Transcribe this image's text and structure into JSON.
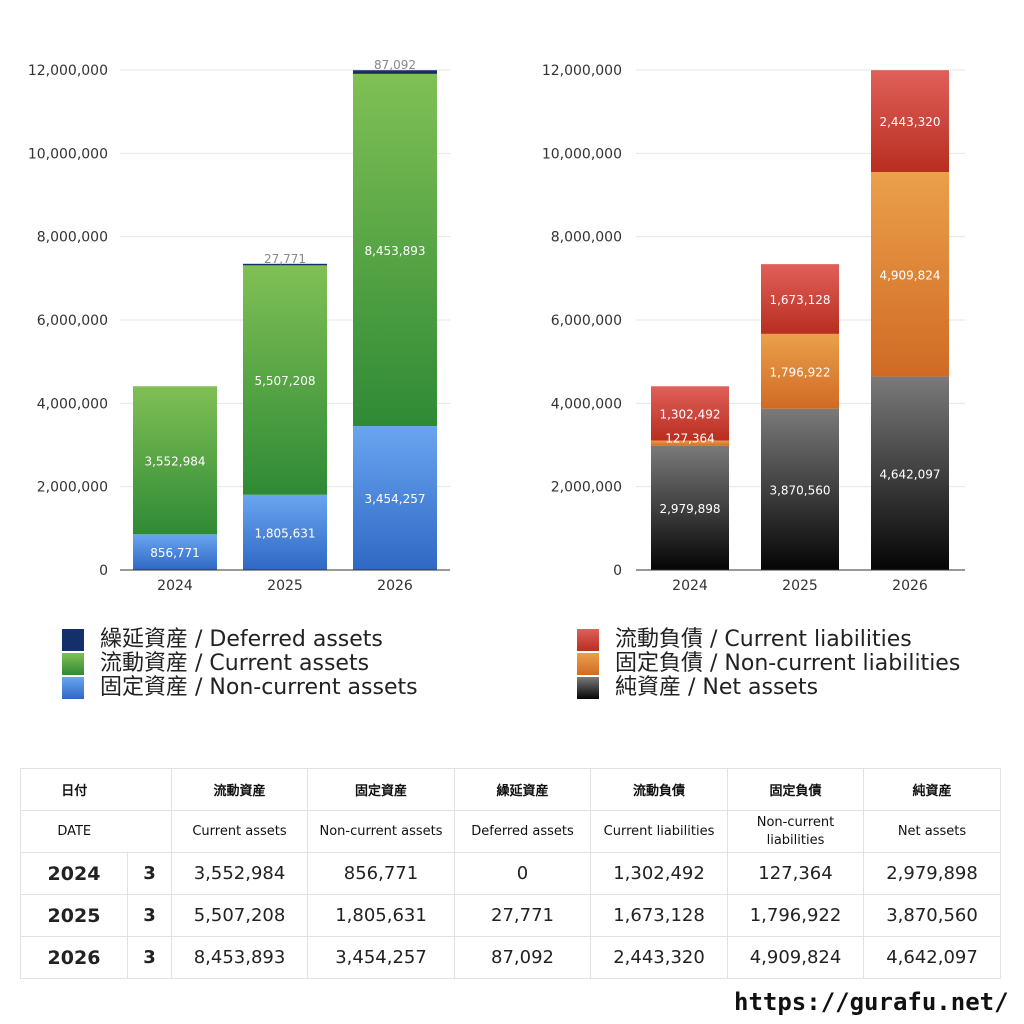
{
  "chart_data": [
    {
      "type": "bar",
      "stacked": true,
      "categories": [
        "2024",
        "2025",
        "2026"
      ],
      "series": [
        {
          "name": "固定資産 / Non-current assets",
          "values": [
            856771,
            1805631,
            3454257
          ],
          "color": "#4a86d8",
          "colorTop": "#6aa5f0",
          "colorBottom": "#2f68c4",
          "labelColor": "#ffffff"
        },
        {
          "name": "流動資産 / Current assets",
          "values": [
            3552984,
            5507208,
            8453893
          ],
          "color": "#5aa64a",
          "colorTop": "#80c055",
          "colorBottom": "#2f8a35",
          "labelColor": "#ffffff"
        },
        {
          "name": "繰延資産 / Deferred assets",
          "values": [
            0,
            27771,
            87092
          ],
          "color": "#14306a",
          "colorTop": "#1a3a7a",
          "colorBottom": "#0e2456",
          "labelColor": "#888888"
        }
      ],
      "ylim": [
        0,
        12000000
      ],
      "yticks": [
        0,
        2000000,
        4000000,
        6000000,
        8000000,
        10000000,
        12000000
      ],
      "grid": true
    },
    {
      "type": "bar",
      "stacked": true,
      "categories": [
        "2024",
        "2025",
        "2026"
      ],
      "series": [
        {
          "name": "純資産 / Net assets",
          "values": [
            2979898,
            3870560,
            4642097
          ],
          "color": "#3a3a3a",
          "colorTop": "#7a7a7a",
          "colorBottom": "#050505",
          "labelColor": "#ffffff"
        },
        {
          "name": "固定負債 / Non-current liabilities",
          "values": [
            127364,
            1796922,
            4909824
          ],
          "color": "#e08a35",
          "colorTop": "#eba04a",
          "colorBottom": "#d06a25",
          "labelColor": "#ffffff"
        },
        {
          "name": "流動負債 / Current liabilities",
          "values": [
            1302492,
            1673128,
            2443320
          ],
          "color": "#d0453a",
          "colorTop": "#e0605a",
          "colorBottom": "#b82e20",
          "labelColor": "#ffffff"
        }
      ],
      "ylim": [
        0,
        12000000
      ],
      "yticks": [
        0,
        2000000,
        4000000,
        6000000,
        8000000,
        10000000,
        12000000
      ],
      "grid": true
    }
  ],
  "legend_left": [
    {
      "label": "繰延資産 / Deferred assets",
      "color": "#14306a"
    },
    {
      "label": "流動資産 / Current assets",
      "color": "#5aa64a"
    },
    {
      "label": "固定資産 / Non-current assets",
      "color": "#4a86d8"
    }
  ],
  "legend_right": [
    {
      "label": "流動負債 / Current liabilities",
      "color": "#d0453a"
    },
    {
      "label": "固定負債 / Non-current liabilities",
      "color": "#e08a35"
    },
    {
      "label": "純資産 / Net assets",
      "color": "#2a2a2a"
    }
  ],
  "table": {
    "head_jp": [
      "日付",
      "",
      "流動資産",
      "固定資産",
      "繰延資産",
      "流動負債",
      "固定負債",
      "純資産"
    ],
    "head_en": [
      "DATE",
      "",
      "Current assets",
      "Non-current assets",
      "Deferred assets",
      "Current liabilities",
      "Non-current liabilities",
      "Net assets"
    ],
    "rows": [
      [
        "2024",
        "3",
        "3,552,984",
        "856,771",
        "0",
        "1,302,492",
        "127,364",
        "2,979,898"
      ],
      [
        "2025",
        "3",
        "5,507,208",
        "1,805,631",
        "27,771",
        "1,673,128",
        "1,796,922",
        "3,870,560"
      ],
      [
        "2026",
        "3",
        "8,453,893",
        "3,454,257",
        "87,092",
        "2,443,320",
        "4,909,824",
        "4,642,097"
      ]
    ]
  },
  "footer": {
    "url": "https://gurafu.net/"
  }
}
